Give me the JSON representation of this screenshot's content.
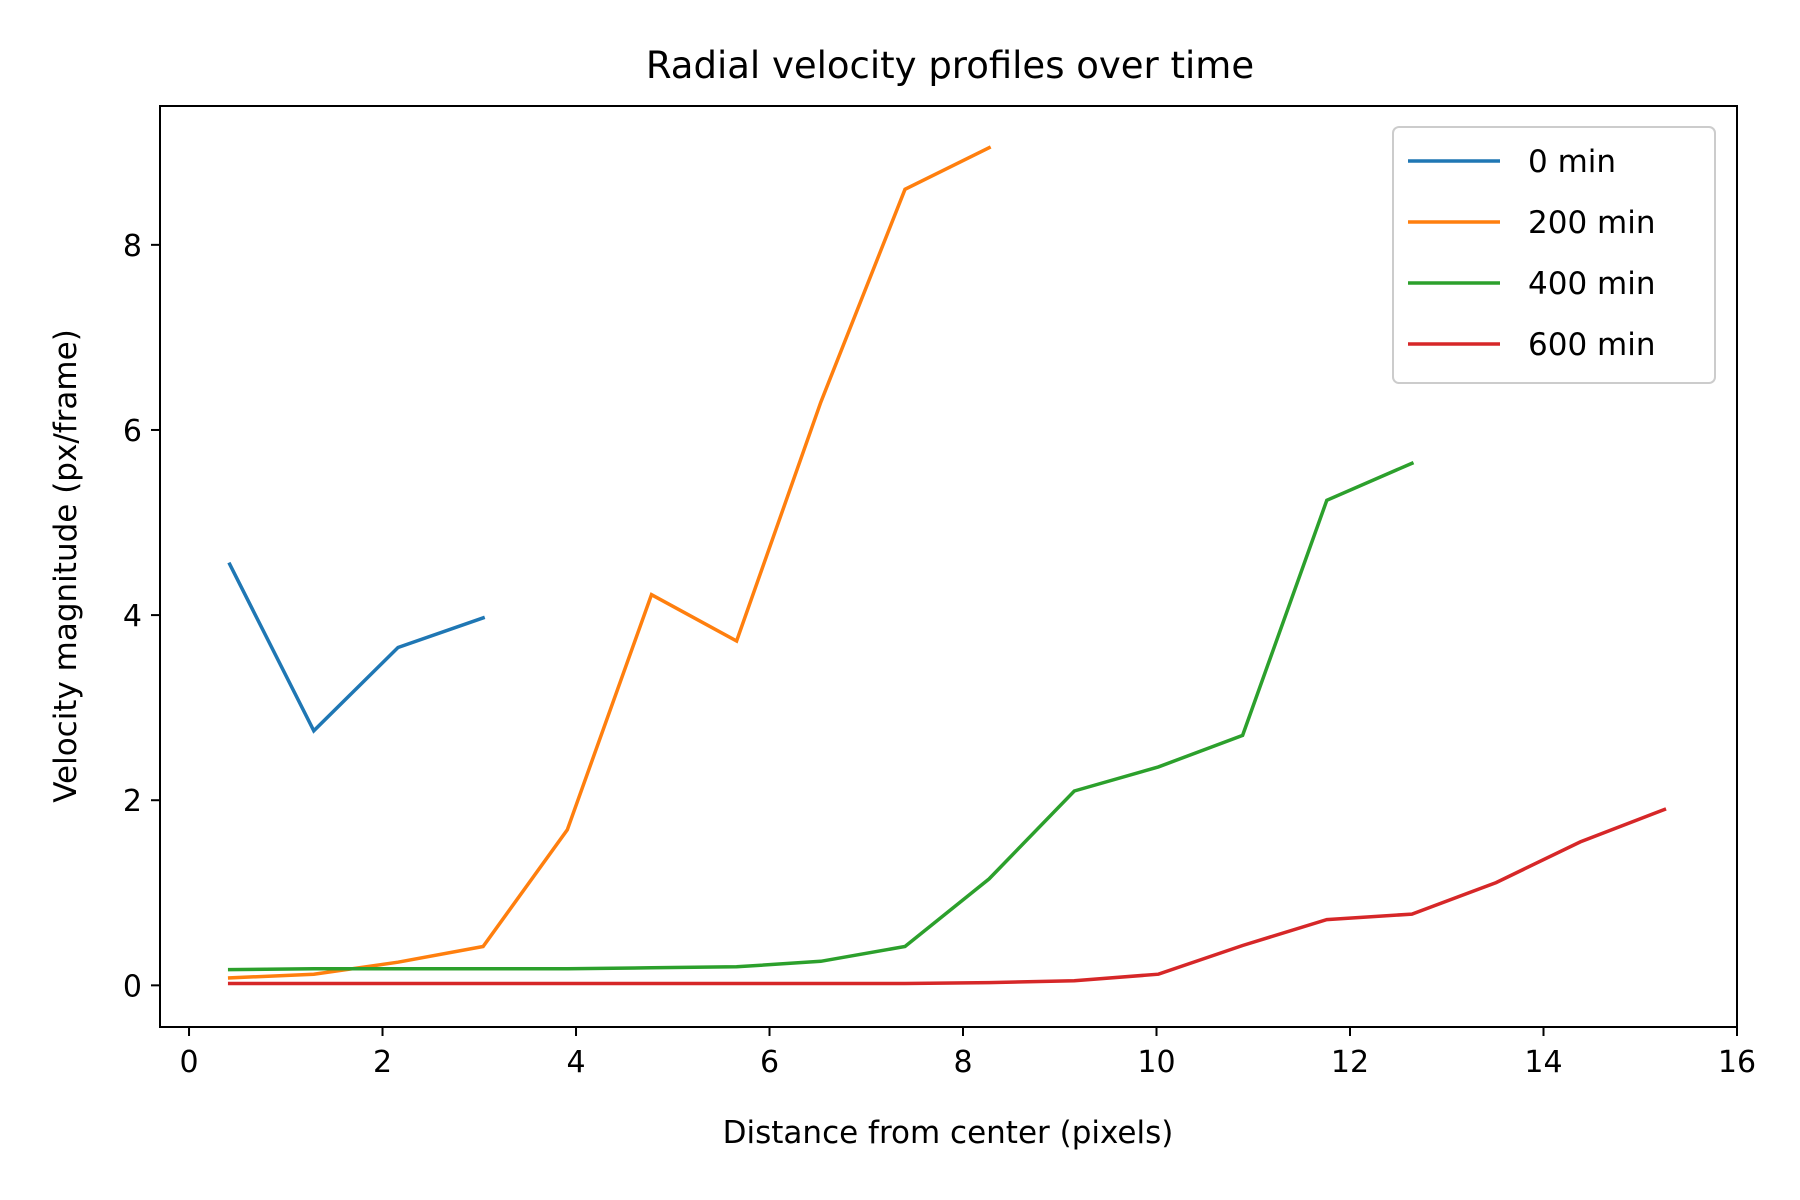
{
  "chart_data": {
    "type": "line",
    "title": "Radial velocity profiles over time",
    "xlabel": "Distance from center (pixels)",
    "ylabel": "Velocity magnitude (px/frame)",
    "xlim": [
      -0.3,
      16
    ],
    "ylim": [
      -0.45,
      9.5
    ],
    "xticks": [
      0,
      2,
      4,
      6,
      8,
      10,
      12,
      14,
      16
    ],
    "yticks": [
      0,
      2,
      4,
      6,
      8
    ],
    "grid": false,
    "legend_position": "top-right",
    "series": [
      {
        "name": "0 min",
        "color": "#1f77b4",
        "x": [
          0.42,
          1.29,
          2.16,
          3.04
        ],
        "y": [
          4.55,
          2.75,
          3.65,
          3.97
        ]
      },
      {
        "name": "200 min",
        "color": "#ff7f0e",
        "x": [
          0.42,
          1.29,
          2.16,
          3.04,
          3.91,
          4.78,
          5.66,
          6.53,
          7.4,
          8.27
        ],
        "y": [
          0.08,
          0.12,
          0.25,
          0.42,
          1.68,
          4.22,
          3.72,
          6.3,
          8.6,
          9.05
        ]
      },
      {
        "name": "400 min",
        "color": "#2ca02c",
        "x": [
          0.42,
          1.29,
          2.16,
          3.04,
          3.91,
          4.78,
          5.66,
          6.53,
          7.4,
          8.27,
          9.15,
          10.02,
          10.89,
          11.76,
          12.64
        ],
        "y": [
          0.17,
          0.18,
          0.18,
          0.18,
          0.18,
          0.19,
          0.2,
          0.26,
          0.42,
          1.15,
          2.1,
          2.36,
          2.7,
          5.24,
          5.64
        ]
      },
      {
        "name": "600 min",
        "color": "#d62728",
        "x": [
          0.42,
          1.29,
          2.16,
          3.04,
          3.91,
          4.78,
          5.66,
          6.53,
          7.4,
          8.27,
          9.15,
          10.02,
          10.89,
          11.76,
          12.64,
          13.51,
          14.38,
          15.25
        ],
        "y": [
          0.02,
          0.02,
          0.02,
          0.02,
          0.02,
          0.02,
          0.02,
          0.02,
          0.02,
          0.03,
          0.05,
          0.12,
          0.43,
          0.71,
          0.77,
          1.11,
          1.55,
          1.9
        ]
      }
    ]
  }
}
